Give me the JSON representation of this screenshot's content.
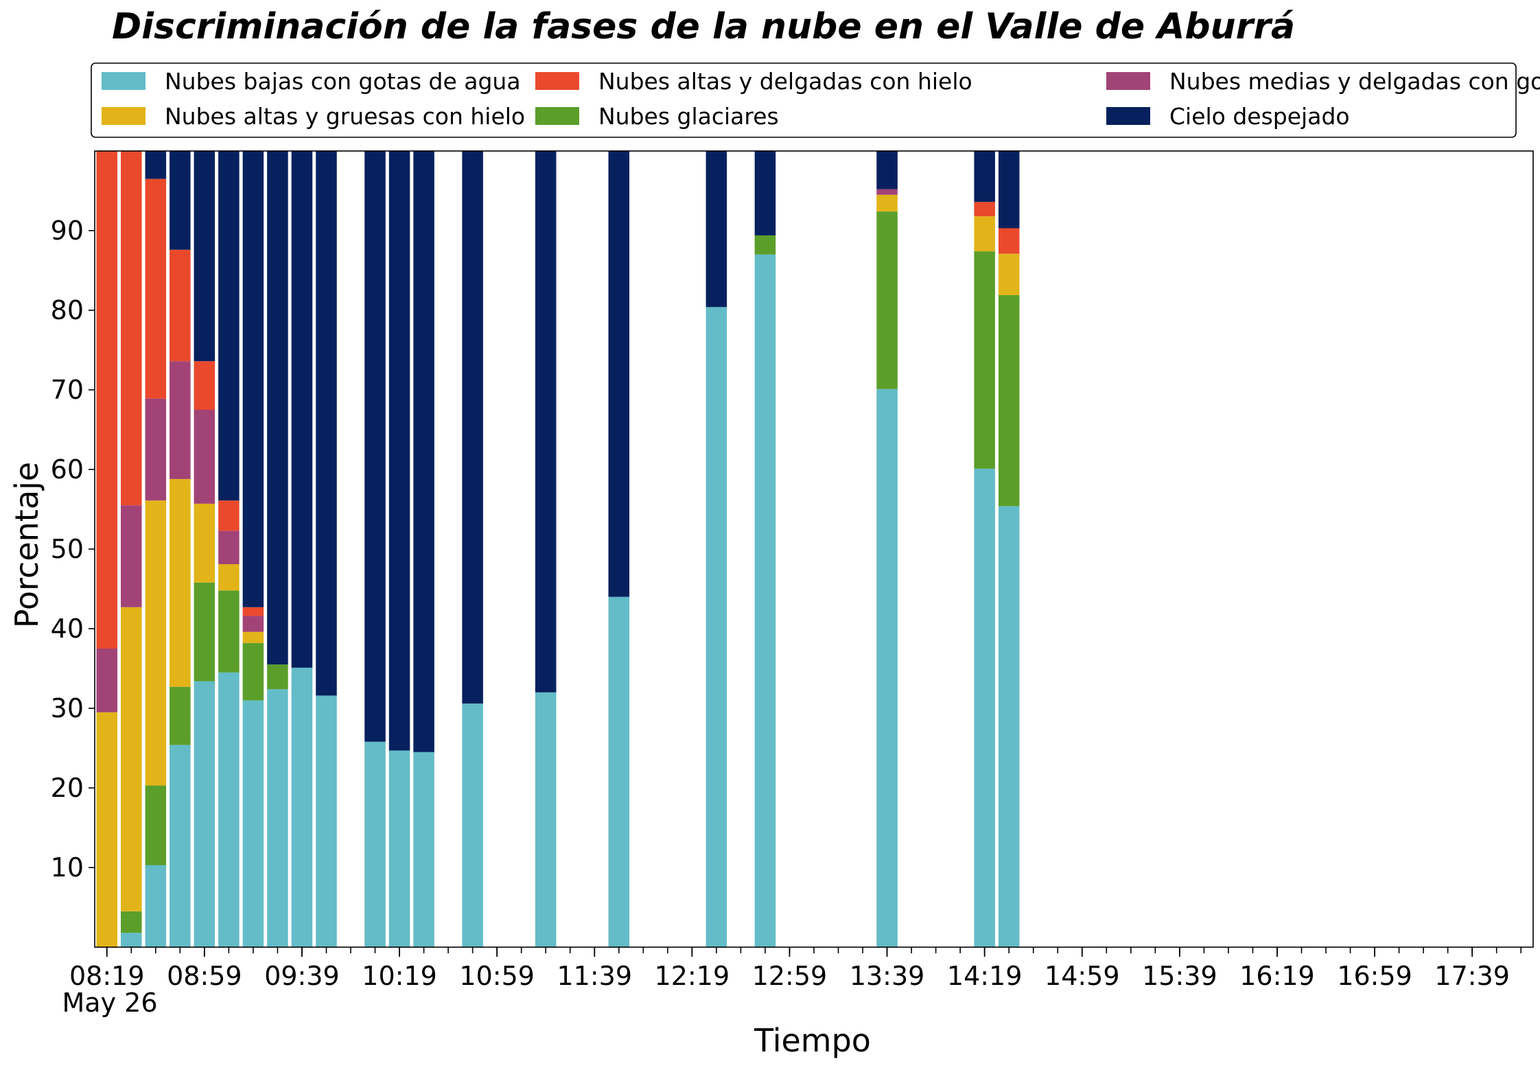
{
  "chart_data": {
    "type": "bar",
    "stacked": true,
    "title": "Discriminación de la fases de la nube en el Valle de Aburrá",
    "xlabel": "Tiempo",
    "ylabel": "Porcentaje",
    "date_label": "May 26",
    "ylim": [
      0,
      100
    ],
    "yticks": [
      10,
      20,
      30,
      40,
      50,
      60,
      70,
      80,
      90
    ],
    "xlim": [
      "08:14",
      "18:04"
    ],
    "xtick_labels": [
      "08:19",
      "08:59",
      "09:39",
      "10:19",
      "10:59",
      "11:39",
      "12:19",
      "12:59",
      "13:39",
      "14:19",
      "14:59",
      "15:39",
      "16:19",
      "16:59",
      "17:39"
    ],
    "x_minor_step_minutes": 10,
    "grid": false,
    "legend_position": "top",
    "bar_width_minutes": 8.6,
    "x": [
      "08:19",
      "08:29",
      "08:39",
      "08:49",
      "08:59",
      "09:09",
      "09:19",
      "09:29",
      "09:39",
      "09:49",
      "10:09",
      "10:19",
      "10:29",
      "10:49",
      "11:19",
      "11:49",
      "12:29",
      "12:49",
      "13:39",
      "14:19",
      "14:29"
    ],
    "series": [
      {
        "name": "Nubes bajas con gotas de agua",
        "color": "#63bcc7",
        "values": [
          0,
          1.8,
          10.3,
          25.4,
          33.4,
          34.5,
          31.0,
          32.4,
          35.1,
          31.6,
          25.8,
          24.7,
          24.5,
          30.6,
          32.0,
          44.0,
          80.4,
          87.0,
          70.1,
          60.1,
          55.4
        ]
      },
      {
        "name": "Nubes glaciares",
        "color": "#5b9e2a",
        "values": [
          0,
          2.7,
          10.0,
          7.3,
          12.4,
          10.3,
          7.2,
          3.1,
          0,
          0,
          0,
          0,
          0,
          0,
          0,
          0,
          0,
          2.4,
          22.3,
          27.3,
          26.5
        ]
      },
      {
        "name": "Nubes altas y gruesas con hielo",
        "color": "#e2b419",
        "values": [
          29.5,
          38.2,
          35.8,
          26.1,
          9.9,
          3.3,
          1.4,
          0,
          0,
          0,
          0,
          0,
          0,
          0,
          0,
          0,
          0,
          0,
          2.1,
          4.4,
          5.2
        ]
      },
      {
        "name": "Nubes medias y delgadas con gotas de agua",
        "color": "#a24377",
        "values": [
          8.0,
          12.8,
          12.8,
          14.8,
          11.8,
          4.2,
          2.0,
          0,
          0,
          0,
          0,
          0,
          0,
          0,
          0,
          0,
          0,
          0,
          0.7,
          0,
          0
        ]
      },
      {
        "name": "Nubes altas y delgadas con hielo",
        "color": "#ea492c",
        "values": [
          62.5,
          44.7,
          27.6,
          14.0,
          6.1,
          3.8,
          1.1,
          0,
          0,
          0,
          0,
          0,
          0,
          0,
          0,
          0,
          0,
          0,
          0,
          1.8,
          3.2
        ]
      },
      {
        "name": "Cielo despejado",
        "color": "#06215e",
        "values": [
          0,
          0.3,
          3.5,
          12.4,
          26.4,
          43.9,
          57.3,
          64.5,
          64.9,
          68.4,
          74.2,
          75.3,
          75.5,
          69.4,
          68.0,
          56.0,
          19.6,
          10.6,
          4.8,
          6.4,
          9.7
        ]
      }
    ],
    "legend_order": [
      0,
      2,
      4,
      1,
      3,
      5
    ]
  }
}
